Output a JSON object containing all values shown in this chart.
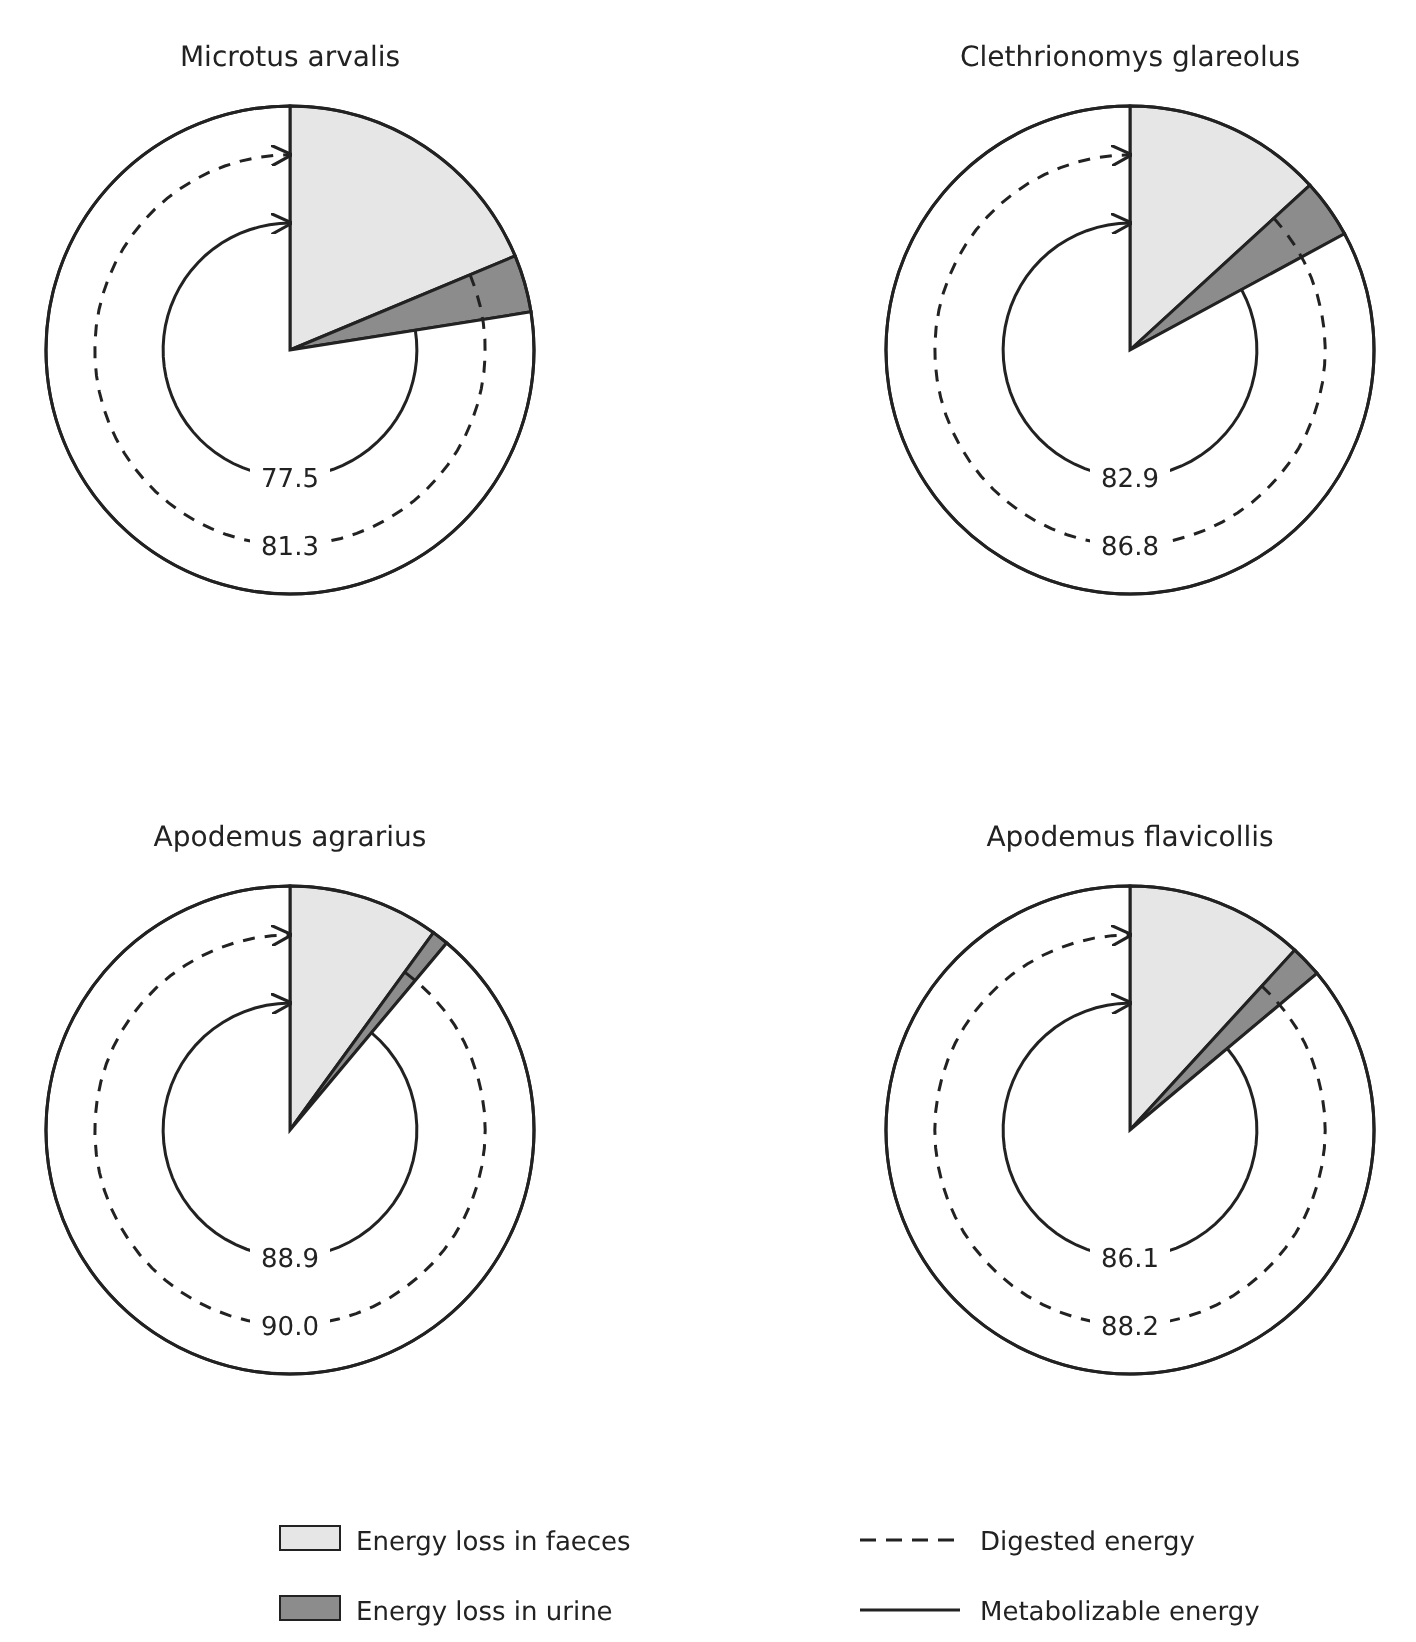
{
  "chart_data": [
    {
      "type": "pie",
      "title": "Microtus arvalis",
      "categories": [
        null,
        null,
        null
      ],
      "values": [
        18.7,
        3.8,
        77.5
      ],
      "colors": [
        "#e6e6e6",
        "#8c8c8c",
        "#ffffff"
      ],
      "annotations": [
        "77.5",
        "81.3"
      ]
    },
    {
      "type": "pie",
      "title": "Clethrionomys glareolus",
      "categories": [
        null,
        null,
        null
      ],
      "values": [
        13.2,
        3.9,
        82.9
      ],
      "colors": [
        "#e6e6e6",
        "#8c8c8c",
        "#ffffff"
      ],
      "annotations": [
        "82.9",
        "86.8"
      ]
    },
    {
      "type": "pie",
      "title": "Apodemus agrarius",
      "categories": [
        null,
        null,
        null
      ],
      "values": [
        10.0,
        1.1,
        88.9
      ],
      "colors": [
        "#e6e6e6",
        "#8c8c8c",
        "#ffffff"
      ],
      "annotations": [
        "88.9",
        "90.0"
      ]
    },
    {
      "type": "pie",
      "title": "Apodemus flavicollis",
      "categories": [
        null,
        null,
        null
      ],
      "values": [
        11.8,
        2.1,
        86.1
      ],
      "colors": [
        "#e6e6e6",
        "#8c8c8c",
        "#ffffff"
      ],
      "annotations": [
        "86.1",
        "88.2"
      ]
    },
    {
      "type": "other",
      "annotations": [
        "Energy loss in faeces",
        "Energy loss in urine",
        "Digested energy",
        "Metabolizable energy"
      ]
    }
  ]
}
